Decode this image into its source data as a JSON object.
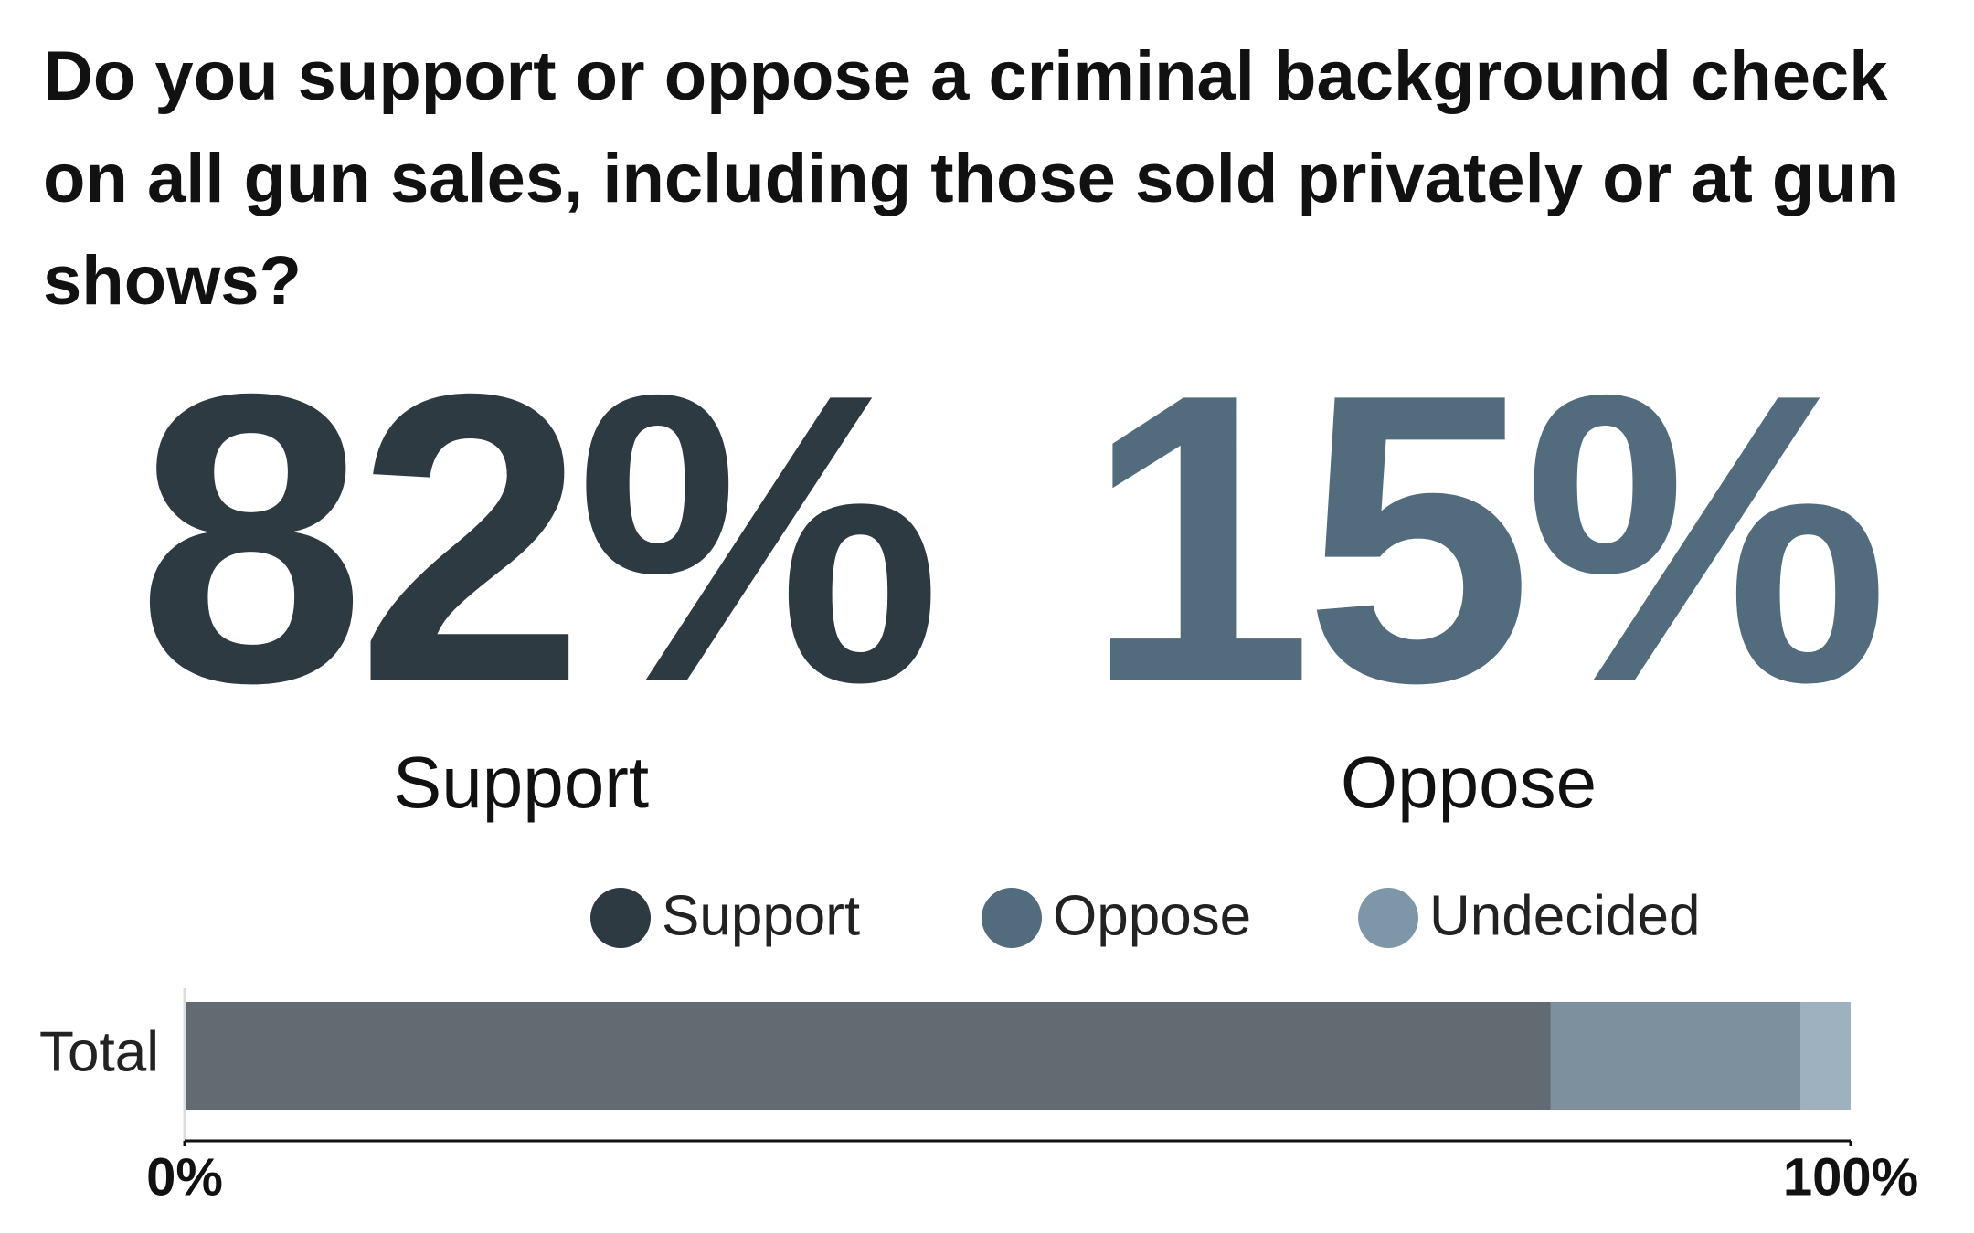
{
  "chart_data": {
    "type": "bar",
    "orientation": "horizontal",
    "stacked": true,
    "title": "Do you support or oppose a criminal background check on all gun sales, including those sold privately or at gun shows?",
    "categories": [
      "Total"
    ],
    "series": [
      {
        "name": "Support",
        "color": "#2d3a42",
        "values": [
          82
        ],
        "value_labels": [
          "82%"
        ]
      },
      {
        "name": "Oppose",
        "color": "#526b7d",
        "values": [
          15
        ],
        "value_labels": [
          "15%"
        ]
      },
      {
        "name": "Undecided",
        "color": "#7d97a8",
        "values": [
          3
        ]
      }
    ],
    "xlim": [
      0,
      100
    ],
    "xticks": [
      {
        "value": 0,
        "label": "0%"
      },
      {
        "value": 100,
        "label": "100%"
      }
    ],
    "legend": "top"
  }
}
